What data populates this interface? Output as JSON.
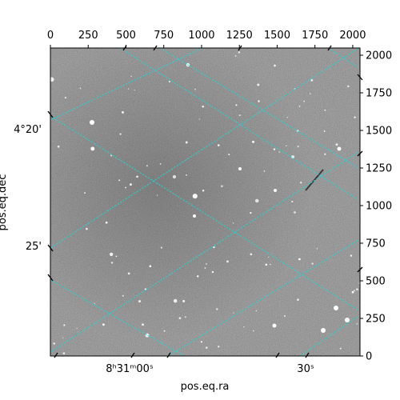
{
  "figure": {
    "x_axis_title": "pos.eq.ra",
    "y_axis_title": "pos.eq.dec"
  },
  "pixel_axes": {
    "x_ticks": [
      "0",
      "250",
      "500",
      "750",
      "1000",
      "1250",
      "1500",
      "1750",
      "2000"
    ],
    "y_ticks": [
      "0",
      "250",
      "500",
      "750",
      "1000",
      "1250",
      "1500",
      "1750",
      "2000"
    ]
  },
  "world_axes": {
    "ra_hm": "8ʰ31ᵐ00ˢ",
    "ra_sec": "30ˢ",
    "dec_deg": "4°20'",
    "dec_min": "25'"
  },
  "colors": {
    "grid_overlay": "#27d3d3",
    "image_base": "#6e6e6e",
    "frame": "#000000"
  }
}
